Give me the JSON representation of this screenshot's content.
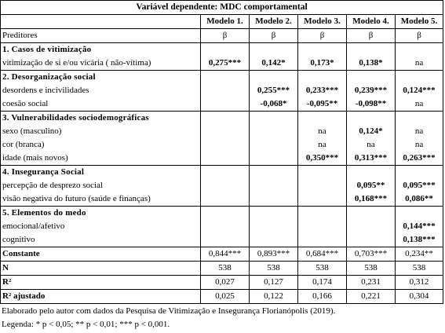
{
  "title": "Variável dependente: MDC comportamental",
  "models": [
    "Modelo 1.",
    "Modelo 2.",
    "Modelo 3.",
    "Modelo 4.",
    "Modelo 5."
  ],
  "predictors_label": "Preditores",
  "beta_symbol": "β",
  "rows": [
    {
      "type": "section",
      "label": "1. Casos de vitimização"
    },
    {
      "type": "data",
      "label": "vitimização de si e/ou vicária ( não-vítima)",
      "values": [
        "0,275***",
        "0,142*",
        "0,173*",
        "0,138*",
        "na"
      ],
      "bold": [
        true,
        true,
        true,
        true,
        false
      ]
    },
    {
      "type": "section",
      "label": "2. Desorganização social"
    },
    {
      "type": "data",
      "label": "desordens e incivilidades",
      "values": [
        "",
        "0,255***",
        "0,233***",
        "0,239***",
        "0,124***"
      ],
      "bold": [
        false,
        true,
        true,
        true,
        true
      ]
    },
    {
      "type": "data",
      "label": "coesão social",
      "values": [
        "",
        "-0,068*",
        "-0,095**",
        "-0,098**",
        "na"
      ],
      "bold": [
        false,
        true,
        true,
        true,
        false
      ]
    },
    {
      "type": "section",
      "label": "3. Vulnerabilidades sociodemográficas"
    },
    {
      "type": "data",
      "label": "sexo (masculino)",
      "values": [
        "",
        "",
        "na",
        "0,124*",
        "na"
      ],
      "bold": [
        false,
        false,
        false,
        true,
        false
      ]
    },
    {
      "type": "data",
      "label": "cor (branca)",
      "values": [
        "",
        "",
        "na",
        "na",
        "na"
      ],
      "bold": [
        false,
        false,
        false,
        false,
        false
      ]
    },
    {
      "type": "data",
      "label": "idade (mais novos)",
      "values": [
        "",
        "",
        "0,350***",
        "0,313***",
        "0,263***"
      ],
      "bold": [
        false,
        false,
        true,
        true,
        true
      ]
    },
    {
      "type": "section",
      "label": "4. Insegurança Social"
    },
    {
      "type": "data",
      "label": "percepção de desprezo social",
      "values": [
        "",
        "",
        "",
        "0,095**",
        "0,095***"
      ],
      "bold": [
        false,
        false,
        false,
        true,
        true
      ]
    },
    {
      "type": "data",
      "label": "visão negativa do futuro (saúde e finanças)",
      "values": [
        "",
        "",
        "",
        "0,168***",
        "0,086**"
      ],
      "bold": [
        false,
        false,
        false,
        true,
        true
      ]
    },
    {
      "type": "section",
      "label": "5. Elementos do medo"
    },
    {
      "type": "data",
      "label": "emocional/afetivo",
      "values": [
        "",
        "",
        "",
        "",
        "0,144***"
      ],
      "bold": [
        false,
        false,
        false,
        false,
        true
      ]
    },
    {
      "type": "data",
      "label": "cognitivo",
      "values": [
        "",
        "",
        "",
        "",
        "0,138***"
      ],
      "bold": [
        false,
        false,
        false,
        false,
        true
      ]
    },
    {
      "type": "stat",
      "label": "Constante",
      "values": [
        "0,844***",
        "0,893***",
        "0,684***",
        "0,703***",
        "0,234**"
      ]
    },
    {
      "type": "stat",
      "label": "N",
      "values": [
        "538",
        "538",
        "538",
        "538",
        "538"
      ]
    },
    {
      "type": "stat",
      "label": "R²",
      "values": [
        "0,027",
        "0,127",
        "0,174",
        "0,231",
        "0,312"
      ]
    },
    {
      "type": "stat",
      "label": "R² ajustado",
      "values": [
        "0,025",
        "0,122",
        "0,166",
        "0,221",
        "0,304"
      ]
    }
  ],
  "source_note": "Elaborado pelo autor com dados da Pesquisa de Vitimização e Insegurança Florianópolis (2019).",
  "legend_note": "Legenda: * p < 0,05; ** p < 0,01; *** p < 0,001."
}
